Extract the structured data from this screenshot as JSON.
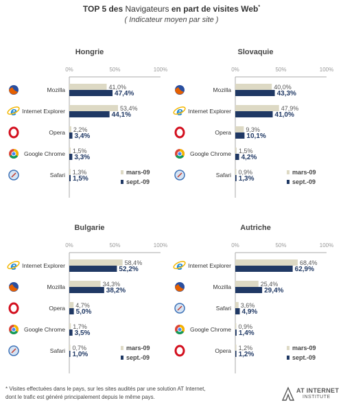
{
  "title": {
    "part1": "TOP 5 des",
    "part2": "Navigateurs",
    "part3": "en part de visites Web",
    "note_mark": "*",
    "subtitle": "( Indicateur moyen par site )"
  },
  "legend": {
    "mars": "mars-09",
    "sept": "sept.-09"
  },
  "colors": {
    "mars": "#ddd9c4",
    "sept": "#1f3864",
    "axis": "#aaaaaa"
  },
  "chart_data": [
    {
      "type": "bar",
      "title": "Hongrie",
      "xlim": [
        0,
        100
      ],
      "ticks": [
        "0%",
        "50%",
        "100%"
      ],
      "categories": [
        "Mozilla",
        "Internet Explorer",
        "Opera",
        "Google Chrome",
        "Safari"
      ],
      "icons": [
        "firefox-icon",
        "ie-icon",
        "opera-icon",
        "chrome-icon",
        "safari-icon"
      ],
      "series": [
        {
          "name": "mars-09",
          "values": [
            41.0,
            53.4,
            2.2,
            1.5,
            1.3
          ],
          "labels": [
            "41,0%",
            "53,4%",
            "2,2%",
            "1,5%",
            "1,3%"
          ]
        },
        {
          "name": "sept.-09",
          "values": [
            47.4,
            44.1,
            3.4,
            3.3,
            1.5
          ],
          "labels": [
            "47,4%",
            "44,1%",
            "3,4%",
            "3,3%",
            "1,5%"
          ]
        }
      ]
    },
    {
      "type": "bar",
      "title": "Slovaquie",
      "xlim": [
        0,
        100
      ],
      "ticks": [
        "0%",
        "50%",
        "100%"
      ],
      "categories": [
        "Mozilla",
        "Internet Explorer",
        "Opera",
        "Google Chrome",
        "Safari"
      ],
      "icons": [
        "firefox-icon",
        "ie-icon",
        "opera-icon",
        "chrome-icon",
        "safari-icon"
      ],
      "series": [
        {
          "name": "mars-09",
          "values": [
            40.0,
            47.9,
            9.3,
            1.5,
            0.9
          ],
          "labels": [
            "40,0%",
            "47,9%",
            "9,3%",
            "1,5%",
            "0,9%"
          ]
        },
        {
          "name": "sept.-09",
          "values": [
            43.3,
            41.0,
            10.1,
            4.2,
            1.3
          ],
          "labels": [
            "43,3%",
            "41,0%",
            "10,1%",
            "4,2%",
            "1,3%"
          ]
        }
      ]
    },
    {
      "type": "bar",
      "title": "Bulgarie",
      "xlim": [
        0,
        100
      ],
      "ticks": [
        "0%",
        "50%",
        "100%"
      ],
      "categories": [
        "Internet Explorer",
        "Mozilla",
        "Opera",
        "Google Chrome",
        "Safari"
      ],
      "icons": [
        "ie-icon",
        "firefox-icon",
        "opera-icon",
        "chrome-icon",
        "safari-icon"
      ],
      "series": [
        {
          "name": "mars-09",
          "values": [
            58.4,
            34.3,
            4.7,
            1.7,
            0.7
          ],
          "labels": [
            "58,4%",
            "34,3%",
            "4,7%",
            "1,7%",
            "0,7%"
          ]
        },
        {
          "name": "sept.-09",
          "values": [
            52.2,
            38.2,
            5.0,
            3.5,
            1.0
          ],
          "labels": [
            "52,2%",
            "38,2%",
            "5,0%",
            "3,5%",
            "1,0%"
          ]
        }
      ]
    },
    {
      "type": "bar",
      "title": "Autriche",
      "xlim": [
        0,
        100
      ],
      "ticks": [
        "0%",
        "50%",
        "100%"
      ],
      "categories": [
        "Internet Explorer",
        "Mozilla",
        "Safari",
        "Google Chrome",
        "Opera"
      ],
      "icons": [
        "ie-icon",
        "firefox-icon",
        "safari-icon",
        "chrome-icon",
        "opera-icon"
      ],
      "series": [
        {
          "name": "mars-09",
          "values": [
            68.4,
            25.4,
            3.6,
            0.9,
            1.2
          ],
          "labels": [
            "68,4%",
            "25,4%",
            "3,6%",
            "0,9%",
            "1,2%"
          ]
        },
        {
          "name": "sept.-09",
          "values": [
            62.9,
            29.4,
            4.9,
            1.4,
            1.2
          ],
          "labels": [
            "62,9%",
            "29,4%",
            "4,9%",
            "1,4%",
            "1,2%"
          ]
        }
      ]
    }
  ],
  "footer": {
    "line1": "*   Visites effectuées dans le pays, sur les sites audités par une solution AT Internet,",
    "line2": "dont le trafic est généré principalement depuis le même pays."
  },
  "logo": {
    "line1": "AT INTERNET",
    "line2": "INSTITUTE"
  }
}
